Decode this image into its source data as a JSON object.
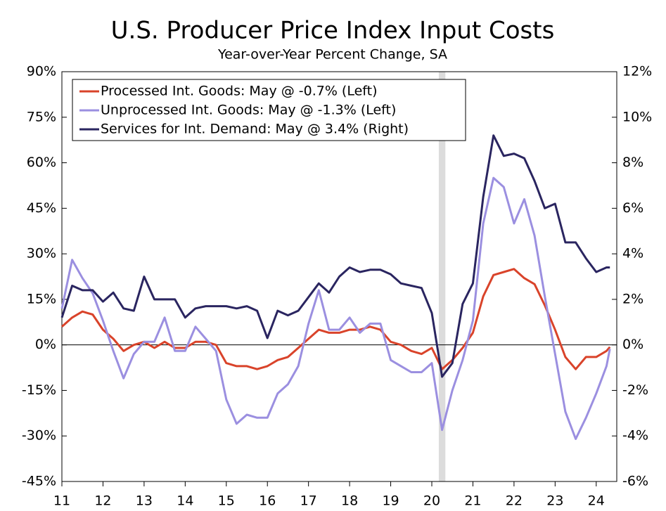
{
  "chart_data": {
    "type": "line",
    "title": "U.S. Producer Price Index Input Costs",
    "subtitle": "Year-over-Year Percent Change, SA",
    "x": [
      2011,
      2011.25,
      2011.5,
      2011.75,
      2012,
      2012.25,
      2012.5,
      2012.75,
      2013,
      2013.25,
      2013.5,
      2013.75,
      2014,
      2014.25,
      2014.5,
      2014.75,
      2015,
      2015.25,
      2015.5,
      2015.75,
      2016,
      2016.25,
      2016.5,
      2016.75,
      2017,
      2017.25,
      2017.5,
      2017.75,
      2018,
      2018.25,
      2018.5,
      2018.75,
      2019,
      2019.25,
      2019.5,
      2019.75,
      2020,
      2020.25,
      2020.5,
      2020.75,
      2021,
      2021.25,
      2021.5,
      2021.75,
      2022,
      2022.25,
      2022.5,
      2022.75,
      2023,
      2023.25,
      2023.5,
      2023.75,
      2024,
      2024.25,
      2024.333
    ],
    "series": [
      {
        "name": "Processed Int. Goods: May @ -0.7% (Left)",
        "color": "#d9432a",
        "values": [
          6,
          9,
          11,
          10,
          5,
          2,
          -2,
          0,
          1,
          -1,
          1,
          -1,
          -1,
          1,
          1,
          0,
          -6,
          -7,
          -7,
          -8,
          -7,
          -5,
          -4,
          -1,
          2,
          5,
          4,
          4,
          5,
          5,
          6,
          5,
          1,
          0,
          -2,
          -3,
          -1,
          -8,
          -5,
          -1,
          4,
          16,
          23,
          24,
          25,
          22,
          20,
          13,
          5,
          -4,
          -8,
          -4,
          -4,
          -2,
          -0.7
        ]
      },
      {
        "name": "Unprocessed Int. Goods: May @ -1.3% (Left)",
        "color": "#9b8fe0",
        "values": [
          12,
          28,
          22,
          17,
          8,
          -2,
          -11,
          -3,
          1,
          1,
          9,
          -2,
          -2,
          6,
          2,
          -2,
          -18,
          -26,
          -23,
          -24,
          -24,
          -16,
          -13,
          -7,
          7,
          18,
          5,
          5,
          9,
          4,
          7,
          7,
          -5,
          -7,
          -9,
          -9,
          -6,
          -28,
          -15,
          -5,
          8,
          40,
          55,
          52,
          40,
          48,
          36,
          16,
          -3,
          -22,
          -31,
          -24,
          -16,
          -7,
          -1.3
        ]
      },
      {
        "name": "Services for Int. Demand: May @ 3.4% (Right)",
        "color": "#2a2560",
        "axis": "y2",
        "values": [
          1.2,
          2.6,
          2.4,
          2.4,
          1.9,
          2.3,
          1.6,
          1.5,
          3.0,
          2.0,
          2.0,
          2.0,
          1.2,
          1.6,
          1.7,
          1.7,
          1.7,
          1.6,
          1.7,
          1.5,
          0.3,
          1.5,
          1.3,
          1.5,
          2.1,
          2.7,
          2.3,
          3.0,
          3.4,
          3.2,
          3.3,
          3.3,
          3.1,
          2.7,
          2.6,
          2.5,
          1.4,
          -1.4,
          -0.8,
          1.8,
          2.7,
          6.5,
          9.2,
          8.3,
          8.4,
          8.2,
          7.2,
          6.0,
          6.2,
          4.5,
          4.5,
          3.8,
          3.2,
          3.4,
          3.4
        ]
      }
    ],
    "xlim": [
      2011,
      2024.5
    ],
    "xticks": [
      {
        "value": 2011,
        "label": "11"
      },
      {
        "value": 2012,
        "label": "12"
      },
      {
        "value": 2013,
        "label": "13"
      },
      {
        "value": 2014,
        "label": "14"
      },
      {
        "value": 2015,
        "label": "15"
      },
      {
        "value": 2016,
        "label": "16"
      },
      {
        "value": 2017,
        "label": "17"
      },
      {
        "value": 2018,
        "label": "18"
      },
      {
        "value": 2019,
        "label": "19"
      },
      {
        "value": 2020,
        "label": "20"
      },
      {
        "value": 2021,
        "label": "21"
      },
      {
        "value": 2022,
        "label": "22"
      },
      {
        "value": 2023,
        "label": "23"
      },
      {
        "value": 2024,
        "label": "24"
      }
    ],
    "ylim": [
      -45,
      90
    ],
    "yticks": [
      {
        "value": -45,
        "label": "-45%"
      },
      {
        "value": -30,
        "label": "-30%"
      },
      {
        "value": -15,
        "label": "-15%"
      },
      {
        "value": 0,
        "label": "0%"
      },
      {
        "value": 15,
        "label": "15%"
      },
      {
        "value": 30,
        "label": "30%"
      },
      {
        "value": 45,
        "label": "45%"
      },
      {
        "value": 60,
        "label": "60%"
      },
      {
        "value": 75,
        "label": "75%"
      },
      {
        "value": 90,
        "label": "90%"
      }
    ],
    "y2lim": [
      -6,
      12
    ],
    "y2ticks": [
      {
        "value": -6,
        "label": "-6%"
      },
      {
        "value": -4,
        "label": "-4%"
      },
      {
        "value": -2,
        "label": "-2%"
      },
      {
        "value": 0,
        "label": "0%"
      },
      {
        "value": 2,
        "label": "2%"
      },
      {
        "value": 4,
        "label": "4%"
      },
      {
        "value": 6,
        "label": "6%"
      },
      {
        "value": 8,
        "label": "8%"
      },
      {
        "value": 10,
        "label": "10%"
      },
      {
        "value": 12,
        "label": "12%"
      }
    ],
    "recession": [
      2020.17,
      2020.33
    ],
    "legend": "upper left"
  }
}
